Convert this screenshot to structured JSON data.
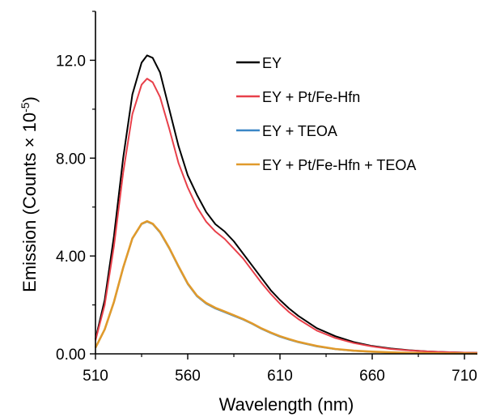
{
  "chart_data": {
    "type": "line",
    "xlabel": "Wavelength (nm)",
    "ylabel_main": "Emission (Counts × 10",
    "ylabel_sup": "-5",
    "ylabel_end": ")",
    "xlim": [
      510,
      717
    ],
    "ylim": [
      0,
      14
    ],
    "x_ticks": [
      510,
      560,
      610,
      660,
      710
    ],
    "x_tick_labels": [
      "510",
      "560",
      "610",
      "660",
      "710"
    ],
    "y_ticks": [
      0,
      4,
      8,
      12
    ],
    "y_tick_labels": [
      "0.00",
      "4.00",
      "8.00",
      "12.0"
    ],
    "legend_position": "top-right",
    "x": [
      510,
      515,
      520,
      525,
      530,
      535,
      538,
      541,
      545,
      550,
      555,
      560,
      565,
      570,
      575,
      580,
      585,
      590,
      595,
      600,
      605,
      610,
      615,
      620,
      630,
      640,
      650,
      660,
      670,
      680,
      690,
      700,
      710,
      717
    ],
    "series": [
      {
        "name": "EY",
        "color": "#000000",
        "values": [
          0.6,
          2.2,
          4.8,
          8.0,
          10.6,
          11.9,
          12.2,
          12.1,
          11.5,
          10.0,
          8.5,
          7.3,
          6.5,
          5.8,
          5.3,
          5.0,
          4.6,
          4.1,
          3.6,
          3.1,
          2.6,
          2.2,
          1.85,
          1.55,
          1.05,
          0.72,
          0.48,
          0.32,
          0.22,
          0.15,
          0.1,
          0.07,
          0.05,
          0.04
        ]
      },
      {
        "name": "EY + Pt/Fe-Hfn",
        "color": "#e8404a",
        "values": [
          0.55,
          2.0,
          4.4,
          7.4,
          9.8,
          11.0,
          11.25,
          11.1,
          10.5,
          9.2,
          7.8,
          6.8,
          6.0,
          5.4,
          5.0,
          4.7,
          4.3,
          3.9,
          3.4,
          2.9,
          2.45,
          2.05,
          1.7,
          1.42,
          0.95,
          0.65,
          0.44,
          0.3,
          0.2,
          0.14,
          0.1,
          0.07,
          0.05,
          0.04
        ]
      },
      {
        "name": "EY + TEOA",
        "color": "#3a86c6",
        "values": [
          0.25,
          1.0,
          2.1,
          3.5,
          4.7,
          5.3,
          5.4,
          5.3,
          4.95,
          4.3,
          3.55,
          2.85,
          2.35,
          2.05,
          1.85,
          1.7,
          1.55,
          1.4,
          1.22,
          1.02,
          0.85,
          0.7,
          0.58,
          0.47,
          0.3,
          0.19,
          0.12,
          0.08,
          0.05,
          0.03,
          0.02,
          0.02,
          0.01,
          0.01
        ]
      },
      {
        "name": "EY + Pt/Fe-Hfn + TEOA",
        "color": "#e09a2c",
        "values": [
          0.25,
          1.0,
          2.12,
          3.52,
          4.72,
          5.32,
          5.42,
          5.32,
          4.98,
          4.33,
          3.58,
          2.88,
          2.38,
          2.08,
          1.88,
          1.73,
          1.58,
          1.42,
          1.24,
          1.04,
          0.87,
          0.72,
          0.6,
          0.49,
          0.32,
          0.2,
          0.13,
          0.09,
          0.06,
          0.04,
          0.03,
          0.02,
          0.02,
          0.01
        ]
      }
    ]
  }
}
